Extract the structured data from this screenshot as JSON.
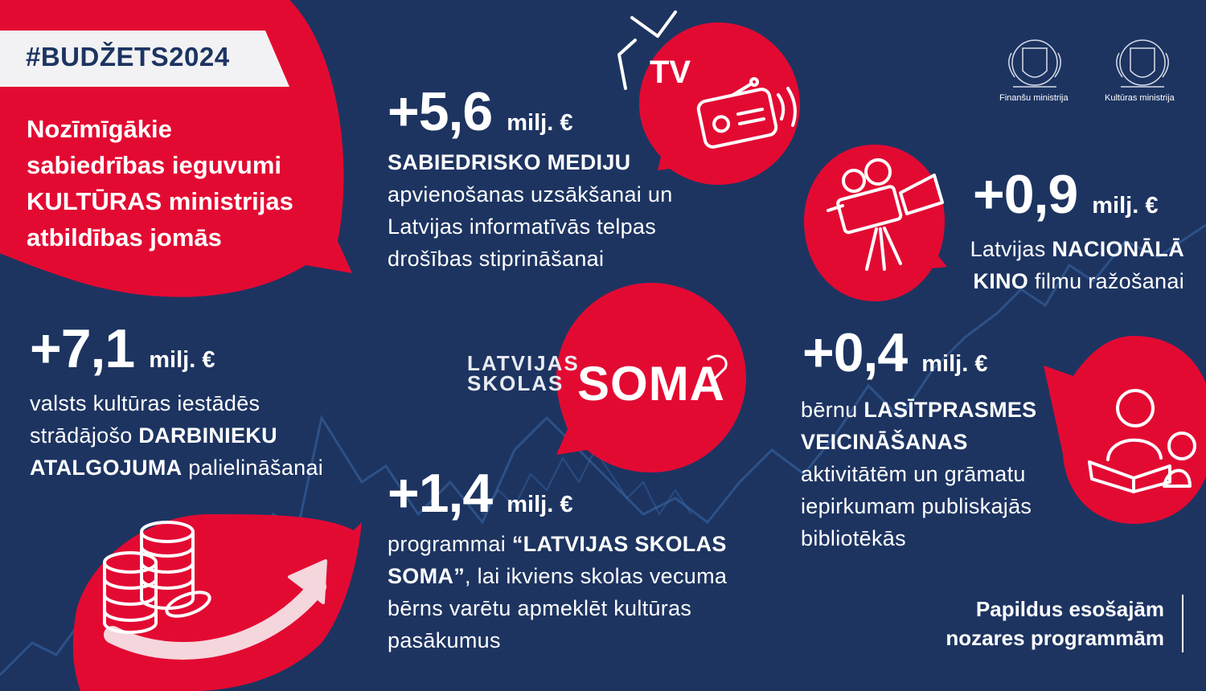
{
  "hashtag": "#BUDŽETS2024",
  "intro": {
    "line1": "Nozīmīgākie",
    "line2": "sabiedrības ieguvumi",
    "line3": "KULTŪRAS ministrijas",
    "line4": "atbildības jomās"
  },
  "logos": {
    "finance_label": "Finanšu ministrija",
    "culture_label": "Kultūras ministrija"
  },
  "items": {
    "media": {
      "amount": "+5,6",
      "unit": "milj. €",
      "highlight": "SABIEDRISKO MEDIJU",
      "line2": "apvienošanas uzsākšanai un",
      "line3": "Latvijas informatīvās telpas",
      "line4": "drošības stiprināšanai",
      "icon_label": "TV"
    },
    "cinema": {
      "amount": "+0,9",
      "unit": "milj. €",
      "prefix": "Latvijas ",
      "highlight1": "NACIONĀLĀ",
      "highlight2": "KINO",
      "suffix": " filmu ražošanai"
    },
    "salaries": {
      "amount": "+7,1",
      "unit": "milj. €",
      "line1": "valsts kultūras iestādēs",
      "line2_prefix": "strādājošo ",
      "highlight1": "DARBINIEKU",
      "highlight2": "ATALGOJUMA",
      "line3_suffix": " palielināšanai"
    },
    "soma": {
      "amount": "+1,4",
      "unit": "milj. €",
      "line1_prefix": "programmai ",
      "highlight1": "“LATVIJAS SKOLAS",
      "highlight2": "SOMA”",
      "line2_suffix": ", lai ikviens skolas vecuma",
      "line3": "bērns varētu apmeklēt kultūras",
      "line4": "pasākumus",
      "logo_small_1": "LATVIJAS",
      "logo_small_2": "SKOLAS",
      "logo_big": "SOMA"
    },
    "literacy": {
      "amount": "+0,4",
      "unit": "milj. €",
      "line1_prefix": "bērnu ",
      "highlight1": "LASĪTPRASMES",
      "highlight2": "VEICINĀŠANAS",
      "line3": "aktivitātēm un grāmatu",
      "line4": "iepirkumam publiskajās",
      "line5": "bibliotēkās"
    }
  },
  "footer": {
    "line1": "Papildus esošajām",
    "line2": "nozares programmām"
  },
  "colors": {
    "background": "#1d3461",
    "accent_red": "#e30a32",
    "white": "#ffffff"
  }
}
